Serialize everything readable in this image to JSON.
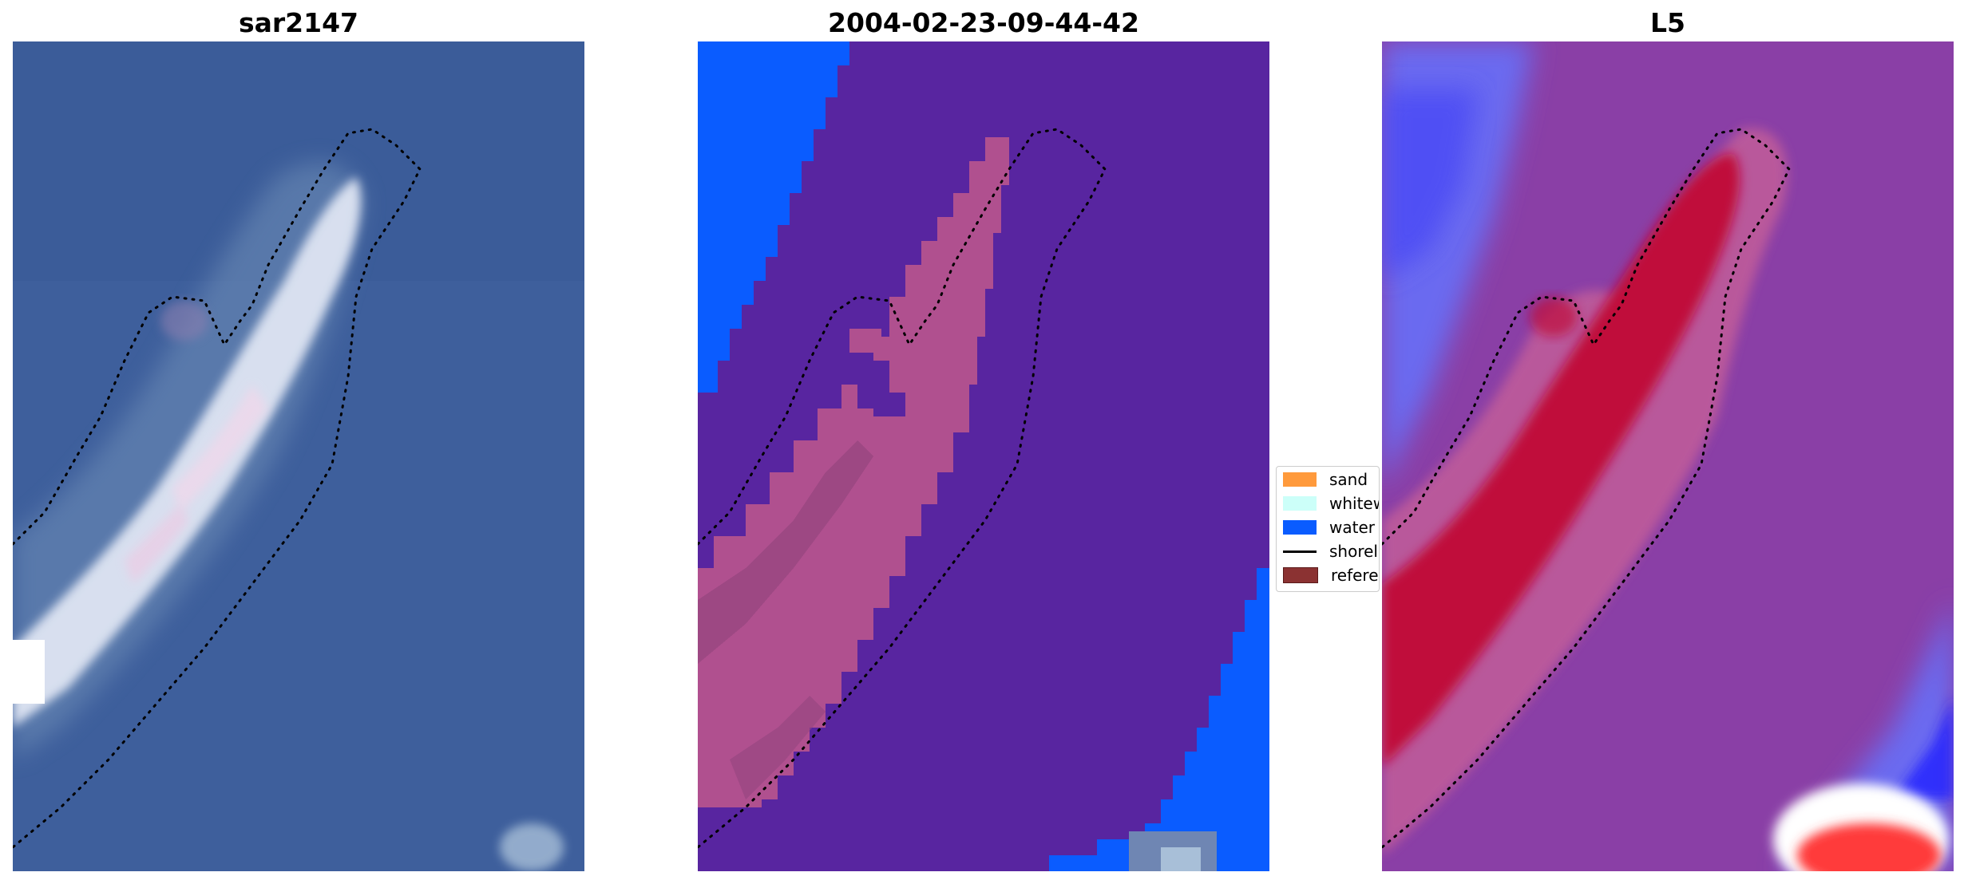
{
  "panels": [
    {
      "title": "sar2147"
    },
    {
      "title": "2004-02-23-09-44-42"
    },
    {
      "title": "L5"
    }
  ],
  "legend": {
    "items": [
      {
        "label": "sand",
        "color": "#ff9a3c",
        "kind": "patch"
      },
      {
        "label": "whitew",
        "color": "#ccfff9",
        "kind": "patch"
      },
      {
        "label": "water",
        "color": "#0a5cff",
        "kind": "patch"
      },
      {
        "label": "shorel",
        "color": "#000000",
        "kind": "line"
      },
      {
        "label": "referen",
        "color": "#8b3232",
        "kind": "patch"
      }
    ]
  }
}
